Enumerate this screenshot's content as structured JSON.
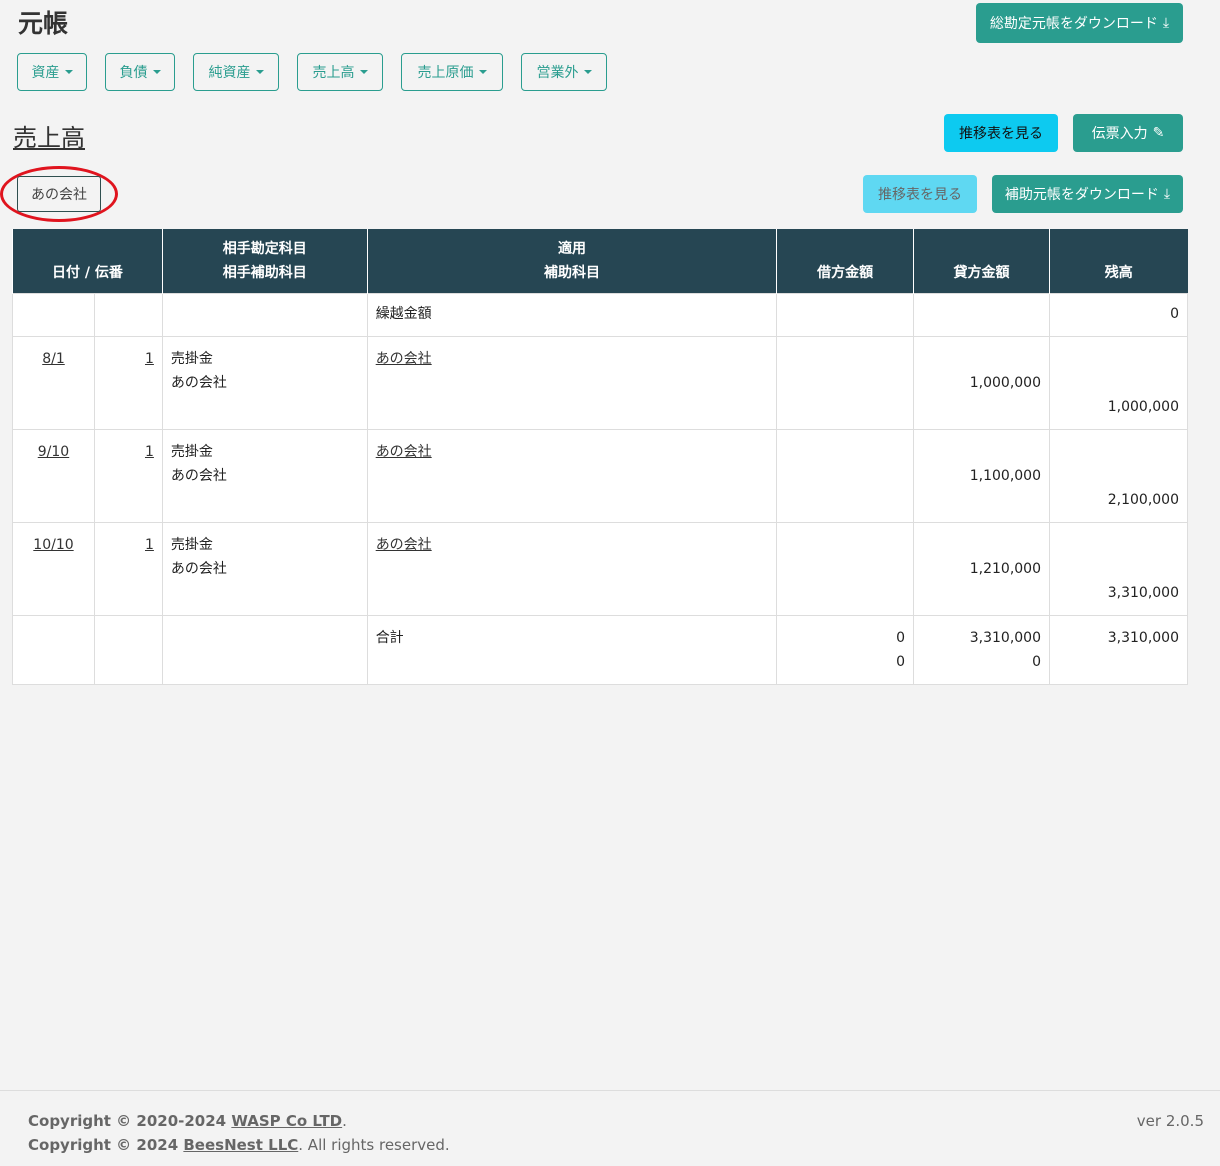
{
  "header": {
    "title": "元帳",
    "download_all": "総勘定元帳をダウンロード"
  },
  "categories": [
    "資産",
    "負債",
    "純資産",
    "売上高",
    "売上原価",
    "営業外"
  ],
  "account": {
    "title": "売上高",
    "view_transition": "推移表を見る",
    "slip_entry": "伝票入力"
  },
  "sub_account": {
    "name": "あの会社",
    "view_transition": "推移表を見る",
    "download_sub": "補助元帳をダウンロード"
  },
  "table": {
    "headers": {
      "date_slip": "日付 / 伝番",
      "counter_1": "相手勘定科目",
      "counter_2": "相手補助科目",
      "desc_1": "適用",
      "desc_2": "補助科目",
      "debit": "借方金額",
      "credit": "貸方金額",
      "balance": "残高"
    },
    "carry": {
      "label": "繰越金額",
      "balance": "0"
    },
    "rows": [
      {
        "date": "8/1",
        "slip": "1",
        "account": "売掛金",
        "sub": "あの会社",
        "desc": "あの会社",
        "credit": "1,000,000",
        "balance": "1,000,000"
      },
      {
        "date": "9/10",
        "slip": "1",
        "account": "売掛金",
        "sub": "あの会社",
        "desc": "あの会社",
        "credit": "1,100,000",
        "balance": "2,100,000"
      },
      {
        "date": "10/10",
        "slip": "1",
        "account": "売掛金",
        "sub": "あの会社",
        "desc": "あの会社",
        "credit": "1,210,000",
        "balance": "3,310,000"
      }
    ],
    "total": {
      "label": "合計",
      "debit_1": "0",
      "debit_2": "0",
      "credit_1": "3,310,000",
      "credit_2": "0",
      "balance": "3,310,000"
    }
  },
  "footer": {
    "c1_prefix": "Copyright © 2020-2024 ",
    "c1_link": "WASP Co LTD",
    "c2_prefix": "Copyright © 2024 ",
    "c2_link": "BeesNest LLC",
    "c2_suffix": ". All rights reserved.",
    "dot": ".",
    "version": "ver 2.0.5"
  }
}
